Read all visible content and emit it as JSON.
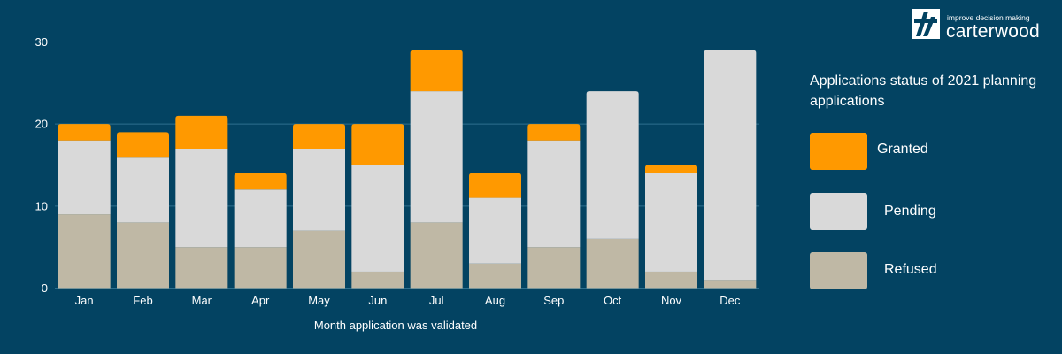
{
  "logo": {
    "tagline": "improve decision making",
    "name": "carterwood"
  },
  "legend": {
    "title": "Applications status of 2021 planning applications",
    "items": [
      {
        "label": "Granted",
        "color": "#FF9900"
      },
      {
        "label": "Pending",
        "color": "#D9D9D9"
      },
      {
        "label": "Refused",
        "color": "#BFB8A5"
      }
    ]
  },
  "colors": {
    "background": "#034362",
    "gridline": "#2E6F8E"
  },
  "chart_data": {
    "type": "bar",
    "stacked": true,
    "categories": [
      "Jan",
      "Feb",
      "Mar",
      "Apr",
      "May",
      "Jun",
      "Jul",
      "Aug",
      "Sep",
      "Oct",
      "Nov",
      "Dec"
    ],
    "series": [
      {
        "name": "Refused",
        "color": "#BFB8A5",
        "values": [
          9,
          8,
          5,
          5,
          7,
          2,
          8,
          3,
          5,
          6,
          2,
          1
        ]
      },
      {
        "name": "Pending",
        "color": "#D9D9D9",
        "values": [
          9,
          8,
          12,
          7,
          10,
          13,
          16,
          8,
          13,
          18,
          12,
          28
        ]
      },
      {
        "name": "Granted",
        "color": "#FF9900",
        "values": [
          2,
          3,
          4,
          2,
          3,
          5,
          5,
          3,
          2,
          0,
          1,
          0
        ]
      }
    ],
    "xlabel": "Month application was validated",
    "ylabel": "",
    "ylim": [
      0,
      30
    ],
    "yticks": [
      0,
      10,
      20,
      30
    ],
    "grid": true,
    "legend_position": "right"
  }
}
